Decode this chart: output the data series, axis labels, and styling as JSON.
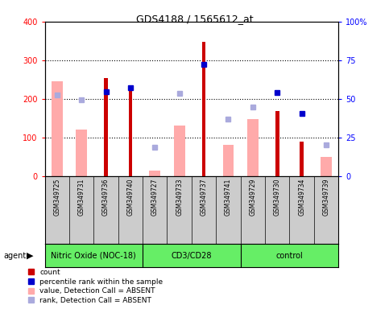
{
  "title": "GDS4188 / 1565612_at",
  "samples": [
    "GSM349725",
    "GSM349731",
    "GSM349736",
    "GSM349740",
    "GSM349727",
    "GSM349733",
    "GSM349737",
    "GSM349741",
    "GSM349729",
    "GSM349730",
    "GSM349734",
    "GSM349739"
  ],
  "groups": [
    {
      "label": "Nitric Oxide (NOC-18)",
      "start": 0,
      "end": 3
    },
    {
      "label": "CD3/CD28",
      "start": 4,
      "end": 7
    },
    {
      "label": "control",
      "start": 8,
      "end": 11
    }
  ],
  "count_values": [
    null,
    null,
    253,
    232,
    null,
    null,
    347,
    null,
    null,
    168,
    90,
    null
  ],
  "percentile_values": [
    null,
    null,
    218,
    228,
    null,
    null,
    290,
    null,
    null,
    216,
    162,
    null
  ],
  "absent_value_values": [
    245,
    120,
    null,
    null,
    15,
    130,
    null,
    80,
    147,
    null,
    null,
    50
  ],
  "absent_rank_values": [
    210,
    197,
    null,
    null,
    75,
    215,
    null,
    148,
    178,
    null,
    null,
    80
  ],
  "ylim_left": [
    0,
    400
  ],
  "ylim_right": [
    0,
    100
  ],
  "yticks_left": [
    0,
    100,
    200,
    300,
    400
  ],
  "ytick_labels_left": [
    "0",
    "100",
    "200",
    "300",
    "400"
  ],
  "yticks_right": [
    0,
    25,
    50,
    75,
    100
  ],
  "ytick_labels_right": [
    "0",
    "25",
    "50",
    "75",
    "100%"
  ],
  "grid_values": [
    100,
    200,
    300
  ],
  "count_color": "#cc0000",
  "percentile_color": "#0000cc",
  "absent_value_color": "#ffaaaa",
  "absent_rank_color": "#aaaadd",
  "bg_plot_color": "#ffffff",
  "bg_label_color": "#cccccc",
  "green_color": "#66ee66",
  "legend_items": [
    {
      "color": "#cc0000",
      "label": "count"
    },
    {
      "color": "#0000cc",
      "label": "percentile rank within the sample"
    },
    {
      "color": "#ffaaaa",
      "label": "value, Detection Call = ABSENT"
    },
    {
      "color": "#aaaadd",
      "label": "rank, Detection Call = ABSENT"
    }
  ],
  "absent_bar_width": 0.45,
  "count_bar_width": 0.15
}
